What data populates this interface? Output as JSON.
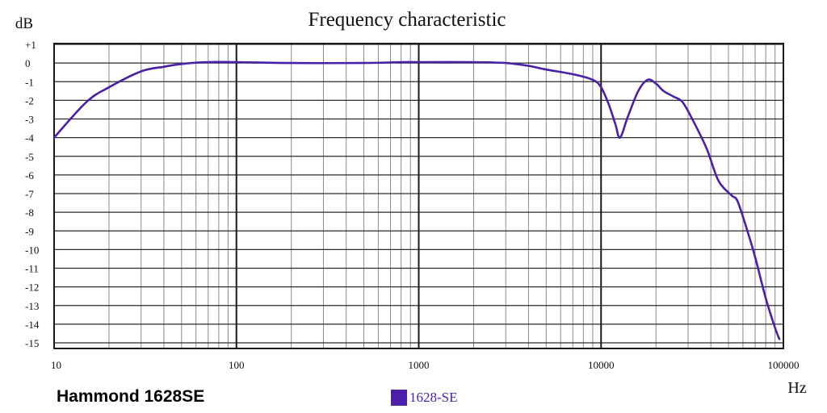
{
  "device_label": "Hammond 1628SE",
  "chart_data": {
    "type": "line",
    "title": "Frequency characteristic",
    "ylabel": "dB",
    "xlabel": "Hz",
    "x_scale": "log",
    "xlim": [
      10,
      100000
    ],
    "ylim": [
      -15,
      1
    ],
    "grid": true,
    "legend": "bottom-center",
    "x_ticks": [
      {
        "value": 10,
        "label": "10"
      },
      {
        "value": 100,
        "label": "100"
      },
      {
        "value": 1000,
        "label": "1000"
      },
      {
        "value": 10000,
        "label": "10000"
      },
      {
        "value": 100000,
        "label": "100000"
      }
    ],
    "y_ticks": [
      {
        "value": 1,
        "label": "+1"
      },
      {
        "value": 0,
        "label": "0"
      },
      {
        "value": -1,
        "label": "-1"
      },
      {
        "value": -2,
        "label": "-2"
      },
      {
        "value": -3,
        "label": "-3"
      },
      {
        "value": -4,
        "label": "-4"
      },
      {
        "value": -5,
        "label": "-5"
      },
      {
        "value": -6,
        "label": "-6"
      },
      {
        "value": -7,
        "label": "-7"
      },
      {
        "value": -8,
        "label": "-8"
      },
      {
        "value": -9,
        "label": "-9"
      },
      {
        "value": -10,
        "label": "-10"
      },
      {
        "value": -11,
        "label": "-11"
      },
      {
        "value": -12,
        "label": "-12"
      },
      {
        "value": -13,
        "label": "-13"
      },
      {
        "value": -14,
        "label": "-14"
      },
      {
        "value": -15,
        "label": "-15"
      }
    ],
    "series": [
      {
        "name": "1628-SE",
        "color": "#4b1fa8",
        "x": [
          10,
          15,
          20,
          30,
          40,
          50,
          70,
          100,
          200,
          500,
          800,
          1000,
          2000,
          3000,
          4000,
          5000,
          7000,
          9000,
          10000,
          11000,
          12000,
          12700,
          14000,
          16000,
          18000,
          20000,
          22000,
          25000,
          28000,
          32000,
          38000,
          44000,
          52000,
          56000,
          63000,
          70000,
          80000,
          90000,
          95000
        ],
        "y": [
          -4.0,
          -2.1,
          -1.3,
          -0.45,
          -0.2,
          -0.05,
          0.05,
          0.05,
          0.0,
          0.0,
          0.05,
          0.05,
          0.05,
          0.0,
          -0.15,
          -0.35,
          -0.6,
          -0.9,
          -1.3,
          -2.2,
          -3.3,
          -4.0,
          -2.9,
          -1.5,
          -0.9,
          -1.1,
          -1.5,
          -1.8,
          -2.1,
          -3.1,
          -4.6,
          -6.3,
          -7.1,
          -7.4,
          -8.9,
          -10.4,
          -12.6,
          -14.2,
          -14.8
        ]
      }
    ]
  }
}
